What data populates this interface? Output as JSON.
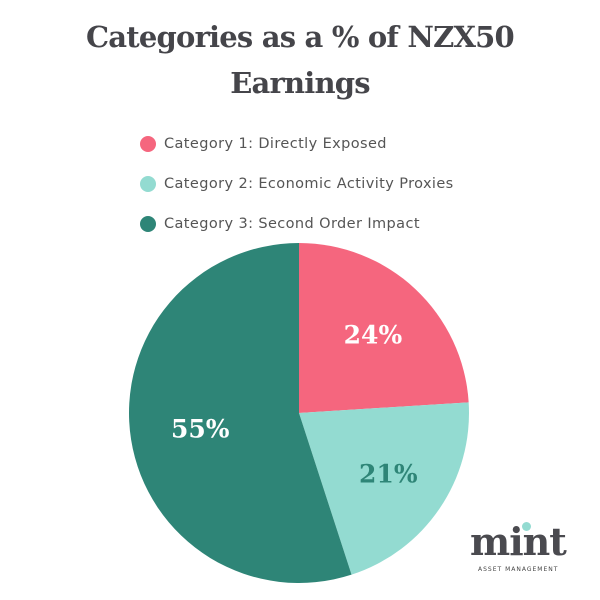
{
  "chart_data": {
    "type": "pie",
    "title": "Categories as a % of NZX50 Earnings",
    "title_lines": [
      "Categories as a % of NZX50",
      "Earnings"
    ],
    "legend_position": "top",
    "slices": [
      {
        "label": "Category 1: Directly Exposed",
        "value": 24,
        "display": "24%",
        "color": "#f5667e",
        "label_color": "#ffffff"
      },
      {
        "label": "Category 2: Economic Activity Proxies",
        "value": 21,
        "display": "21%",
        "color": "#93dbd1",
        "label_color": "#2e8577"
      },
      {
        "label": "Category 3: Second Order Impact",
        "value": 55,
        "display": "55%",
        "color": "#2e8577",
        "label_color": "#ffffff"
      }
    ]
  },
  "logo": {
    "word": "mint",
    "subtitle": "ASSET MANAGEMENT"
  }
}
